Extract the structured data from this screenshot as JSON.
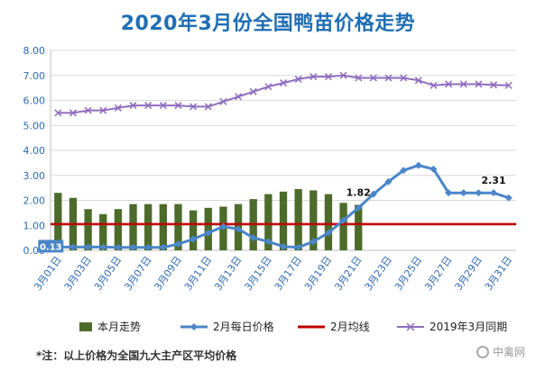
{
  "title": "2020年3月份全国鸭苗价格走势",
  "note": "*注：以上价格为全国九大主产区平均价格",
  "watermark": "中禽网",
  "colors": {
    "bars": "#4d6b2a",
    "feb_line": "#4a86c8",
    "avg_line": "#c00000",
    "prev_line": "#8e6cbf",
    "axis_text": "#2f6ab0",
    "grid": "#d9d9d9"
  },
  "chart_data": {
    "type": "bar",
    "categories": [
      "3月01日",
      "3月02日",
      "3月03日",
      "3月04日",
      "3月05日",
      "3月06日",
      "3月07日",
      "3月08日",
      "3月09日",
      "3月10日",
      "3月11日",
      "3月12日",
      "3月13日",
      "3月14日",
      "3月15日",
      "3月16日",
      "3月17日",
      "3月18日",
      "3月19日",
      "3月20日",
      "3月21日",
      "3月22日",
      "3月23日",
      "3月24日",
      "3月25日",
      "3月26日",
      "3月27日",
      "3月28日",
      "3月29日",
      "3月30日",
      "3月31日"
    ],
    "tick_labels": [
      "3月01日",
      "3月03日",
      "3月05日",
      "3月07日",
      "3月09日",
      "3月11日",
      "3月13日",
      "3月15日",
      "3月17日",
      "3月19日",
      "3月21日",
      "3月23日",
      "3月25日",
      "3月27日",
      "3月29日",
      "3月31日"
    ],
    "ylim": [
      0,
      8
    ],
    "yticks": [
      "0.00",
      "1.00",
      "2.00",
      "3.00",
      "4.00",
      "5.00",
      "6.00",
      "7.00",
      "8.00"
    ],
    "series": [
      {
        "name": "本月走势",
        "kind": "bar",
        "values": [
          2.3,
          2.1,
          1.65,
          1.45,
          1.65,
          1.85,
          1.85,
          1.85,
          1.85,
          1.6,
          1.7,
          1.75,
          1.85,
          2.05,
          2.25,
          2.35,
          2.45,
          2.4,
          2.25,
          1.9,
          1.82,
          null,
          null,
          null,
          null,
          null,
          null,
          null,
          null,
          null,
          null
        ]
      },
      {
        "name": "2月每日价格",
        "kind": "line",
        "values": [
          0.13,
          0.13,
          0.13,
          0.13,
          0.12,
          0.12,
          0.12,
          0.12,
          0.25,
          0.45,
          0.7,
          0.95,
          0.85,
          0.5,
          0.35,
          0.15,
          0.12,
          0.35,
          0.7,
          1.2,
          1.7,
          2.25,
          2.75,
          3.2,
          3.4,
          3.25,
          2.3,
          2.3,
          2.3,
          2.3,
          2.1
        ]
      },
      {
        "name": "2月均线",
        "kind": "hline",
        "value": 1.05
      },
      {
        "name": "2019年3月同期",
        "kind": "line",
        "values": [
          5.5,
          5.5,
          5.6,
          5.6,
          5.7,
          5.8,
          5.8,
          5.8,
          5.8,
          5.75,
          5.75,
          5.95,
          6.15,
          6.35,
          6.55,
          6.7,
          6.85,
          6.95,
          6.95,
          7.0,
          6.9,
          6.9,
          6.9,
          6.9,
          6.8,
          6.6,
          6.65,
          6.65,
          6.65,
          6.62,
          6.6
        ]
      }
    ],
    "annotations": [
      {
        "text": "1.82",
        "x": "3月21日",
        "y": 1.82
      },
      {
        "text": "2.31",
        "x": "3月30日",
        "y": 2.31
      },
      {
        "text": "0.13",
        "x": "3月01日",
        "y": 0.13
      }
    ],
    "legend_position": "bottom"
  }
}
